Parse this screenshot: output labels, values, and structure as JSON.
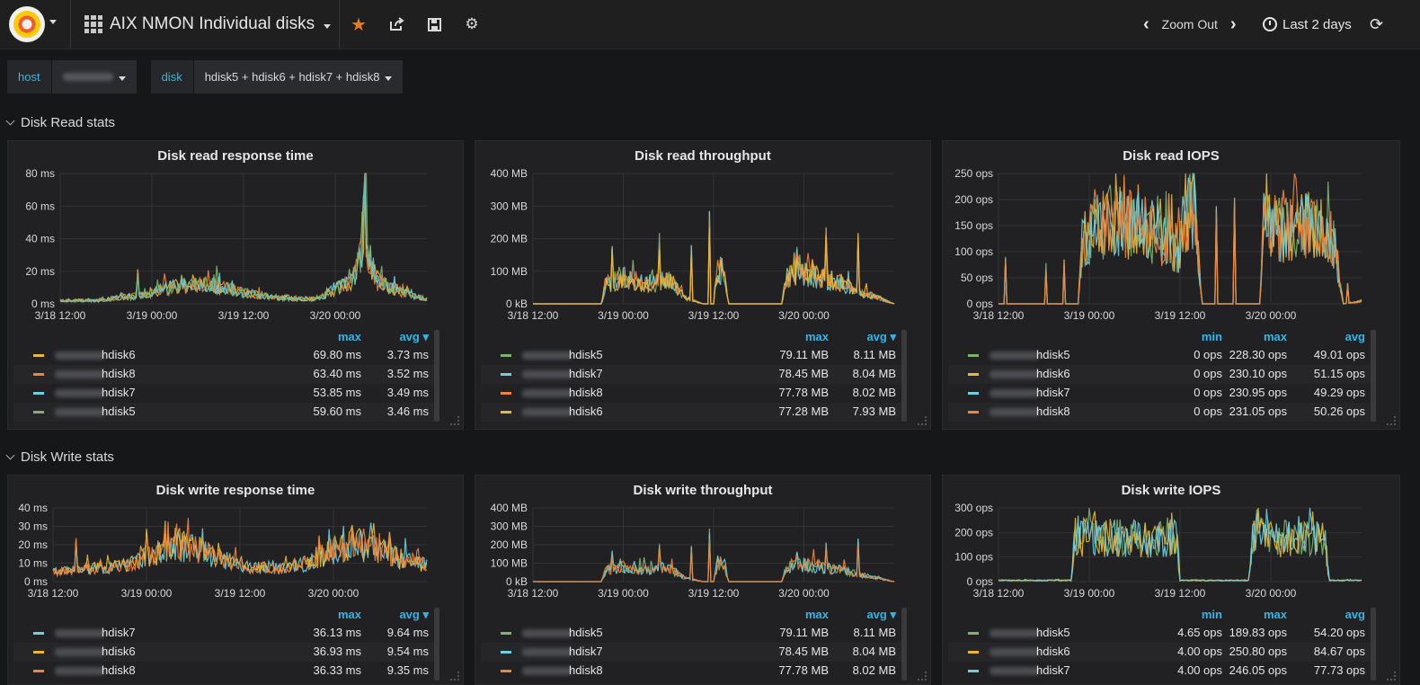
{
  "header": {
    "dashboard_title": "AIX NMON Individual disks",
    "zoom_out_label": "Zoom Out",
    "time_range_label": "Last 2 days"
  },
  "variables": [
    {
      "label": "host",
      "value": ""
    },
    {
      "label": "disk",
      "value": "hdisk5 + hdisk6 + hdisk7 + hdisk8"
    }
  ],
  "rows": [
    {
      "title": "Disk Read stats"
    },
    {
      "title": "Disk Write stats"
    }
  ],
  "colors": {
    "hdisk5": "#7eb26d",
    "hdisk6": "#eab839",
    "hdisk7": "#6ed0e0",
    "hdisk8": "#ef843c",
    "accent": "#33b5e5"
  },
  "panels": [
    {
      "title": "Disk read response time",
      "legend_headers": [
        "max",
        "avg"
      ],
      "legend": [
        {
          "name": "hdisk6",
          "color": "#eab839",
          "values": [
            "69.80 ms",
            "3.73 ms"
          ]
        },
        {
          "name": "hdisk8",
          "color": "#ef843c",
          "values": [
            "63.40 ms",
            "3.52 ms"
          ]
        },
        {
          "name": "hdisk7",
          "color": "#6ed0e0",
          "values": [
            "53.85 ms",
            "3.49 ms"
          ]
        },
        {
          "name": "hdisk5",
          "color": "#7eb26d",
          "values": [
            "59.60 ms",
            "3.46 ms"
          ]
        }
      ]
    },
    {
      "title": "Disk read throughput",
      "legend_headers": [
        "max",
        "avg"
      ],
      "legend": [
        {
          "name": "hdisk5",
          "color": "#7eb26d",
          "values": [
            "79.11 MB",
            "8.11 MB"
          ]
        },
        {
          "name": "hdisk7",
          "color": "#6ed0e0",
          "values": [
            "78.45 MB",
            "8.04 MB"
          ]
        },
        {
          "name": "hdisk8",
          "color": "#ef843c",
          "values": [
            "77.78 MB",
            "8.02 MB"
          ]
        },
        {
          "name": "hdisk6",
          "color": "#eab839",
          "values": [
            "77.28 MB",
            "7.93 MB"
          ]
        }
      ]
    },
    {
      "title": "Disk read IOPS",
      "legend_headers": [
        "min",
        "max",
        "avg"
      ],
      "legend": [
        {
          "name": "hdisk5",
          "color": "#7eb26d",
          "values": [
            "0 ops",
            "228.30 ops",
            "49.01 ops"
          ]
        },
        {
          "name": "hdisk6",
          "color": "#eab839",
          "values": [
            "0 ops",
            "230.10 ops",
            "51.15 ops"
          ]
        },
        {
          "name": "hdisk7",
          "color": "#6ed0e0",
          "values": [
            "0 ops",
            "230.95 ops",
            "49.29 ops"
          ]
        },
        {
          "name": "hdisk8",
          "color": "#ef843c",
          "values": [
            "0 ops",
            "231.05 ops",
            "50.26 ops"
          ]
        }
      ]
    },
    {
      "title": "Disk write response time",
      "legend_headers": [
        "max",
        "avg"
      ],
      "legend": [
        {
          "name": "hdisk7",
          "color": "#6ed0e0",
          "values": [
            "36.13 ms",
            "9.64 ms"
          ]
        },
        {
          "name": "hdisk6",
          "color": "#eab839",
          "values": [
            "36.93 ms",
            "9.54 ms"
          ]
        },
        {
          "name": "hdisk8",
          "color": "#ef843c",
          "values": [
            "36.33 ms",
            "9.35 ms"
          ]
        }
      ]
    },
    {
      "title": "Disk write throughput",
      "legend_headers": [
        "max",
        "avg"
      ],
      "legend": [
        {
          "name": "hdisk5",
          "color": "#7eb26d",
          "values": [
            "79.11 MB",
            "8.11 MB"
          ]
        },
        {
          "name": "hdisk7",
          "color": "#6ed0e0",
          "values": [
            "78.45 MB",
            "8.04 MB"
          ]
        },
        {
          "name": "hdisk8",
          "color": "#ef843c",
          "values": [
            "77.78 MB",
            "8.02 MB"
          ]
        }
      ]
    },
    {
      "title": "Disk write IOPS",
      "legend_headers": [
        "min",
        "max",
        "avg"
      ],
      "legend": [
        {
          "name": "hdisk5",
          "color": "#7eb26d",
          "values": [
            "4.65 ops",
            "189.83 ops",
            "54.20 ops"
          ]
        },
        {
          "name": "hdisk6",
          "color": "#eab839",
          "values": [
            "4.00 ops",
            "250.80 ops",
            "84.67 ops"
          ]
        },
        {
          "name": "hdisk7",
          "color": "#6ed0e0",
          "values": [
            "4.00 ops",
            "246.05 ops",
            "77.73 ops"
          ]
        }
      ]
    }
  ],
  "chart_data": [
    {
      "type": "line",
      "title": "Disk read response time",
      "x_ticks": [
        "3/18 12:00",
        "3/19 00:00",
        "3/19 12:00",
        "3/20 00:00"
      ],
      "y_ticks": [
        "0 ms",
        "20 ms",
        "40 ms",
        "60 ms",
        "80 ms"
      ],
      "ylim": [
        0,
        80
      ],
      "grid": true,
      "profile": [
        [
          0,
          2
        ],
        [
          0.1,
          2
        ],
        [
          0.17,
          4
        ],
        [
          0.22,
          5
        ],
        [
          0.3,
          10
        ],
        [
          0.4,
          12
        ],
        [
          0.5,
          7
        ],
        [
          0.58,
          4
        ],
        [
          0.64,
          3
        ],
        [
          0.7,
          3
        ],
        [
          0.76,
          10
        ],
        [
          0.8,
          14
        ],
        [
          0.82,
          28
        ],
        [
          0.83,
          69
        ],
        [
          0.84,
          30
        ],
        [
          0.86,
          15
        ],
        [
          0.9,
          10
        ],
        [
          0.95,
          6
        ],
        [
          1,
          3
        ]
      ],
      "spikes": [
        [
          0.21,
          22
        ],
        [
          0.29,
          14
        ],
        [
          0.33,
          18
        ],
        [
          0.8,
          24
        ],
        [
          0.83,
          69
        ]
      ],
      "series": [
        "hdisk6",
        "hdisk8",
        "hdisk7",
        "hdisk5"
      ]
    },
    {
      "type": "line",
      "title": "Disk read throughput",
      "x_ticks": [
        "3/18 12:00",
        "3/19 00:00",
        "3/19 12:00",
        "3/20 00:00"
      ],
      "y_ticks": [
        "0 kB",
        "100 MB",
        "200 MB",
        "300 MB",
        "400 MB"
      ],
      "ylim": [
        0,
        400
      ],
      "grid": true,
      "profile": [
        [
          0,
          0
        ],
        [
          0.19,
          0
        ],
        [
          0.2,
          60
        ],
        [
          0.26,
          80
        ],
        [
          0.32,
          60
        ],
        [
          0.38,
          70
        ],
        [
          0.42,
          20
        ],
        [
          0.47,
          0
        ],
        [
          0.5,
          0
        ],
        [
          0.51,
          100
        ],
        [
          0.53,
          100
        ],
        [
          0.54,
          0
        ],
        [
          0.69,
          0
        ],
        [
          0.7,
          80
        ],
        [
          0.74,
          90
        ],
        [
          0.8,
          80
        ],
        [
          0.86,
          60
        ],
        [
          0.9,
          40
        ],
        [
          1,
          0
        ]
      ],
      "spikes": [
        [
          0.22,
          200
        ],
        [
          0.35,
          220
        ],
        [
          0.44,
          210
        ],
        [
          0.49,
          310
        ],
        [
          0.73,
          180
        ],
        [
          0.81,
          240
        ],
        [
          0.9,
          245
        ]
      ],
      "series": [
        "hdisk5",
        "hdisk7",
        "hdisk8",
        "hdisk6"
      ]
    },
    {
      "type": "line",
      "title": "Disk read IOPS",
      "x_ticks": [
        "3/18 12:00",
        "3/19 00:00",
        "3/19 12:00",
        "3/20 00:00"
      ],
      "y_ticks": [
        "0 ops",
        "50 ops",
        "100 ops",
        "150 ops",
        "200 ops",
        "250 ops"
      ],
      "ylim": [
        0,
        250
      ],
      "grid": true,
      "profile": [
        [
          0,
          0
        ],
        [
          0.22,
          0
        ],
        [
          0.23,
          120
        ],
        [
          0.3,
          160
        ],
        [
          0.38,
          150
        ],
        [
          0.45,
          130
        ],
        [
          0.5,
          100
        ],
        [
          0.52,
          170
        ],
        [
          0.54,
          180
        ],
        [
          0.56,
          0
        ],
        [
          0.72,
          0
        ],
        [
          0.73,
          150
        ],
        [
          0.8,
          140
        ],
        [
          0.86,
          150
        ],
        [
          0.92,
          130
        ],
        [
          0.95,
          0
        ],
        [
          1,
          5
        ]
      ],
      "spikes": [
        [
          0.02,
          90
        ],
        [
          0.13,
          80
        ],
        [
          0.18,
          90
        ],
        [
          0.3,
          225
        ],
        [
          0.47,
          215
        ],
        [
          0.53,
          225
        ],
        [
          0.6,
          190
        ],
        [
          0.65,
          210
        ],
        [
          0.76,
          210
        ],
        [
          0.86,
          205
        ],
        [
          0.96,
          40
        ]
      ],
      "series": [
        "hdisk5",
        "hdisk6",
        "hdisk7",
        "hdisk8"
      ]
    },
    {
      "type": "line",
      "title": "Disk write response time",
      "x_ticks": [
        "3/18 12:00",
        "3/19 00:00",
        "3/19 12:00",
        "3/20 00:00"
      ],
      "y_ticks": [
        "0 ms",
        "10 ms",
        "20 ms",
        "30 ms",
        "40 ms"
      ],
      "ylim": [
        0,
        40
      ],
      "grid": true,
      "profile": [
        [
          0,
          5
        ],
        [
          0.1,
          7
        ],
        [
          0.2,
          9
        ],
        [
          0.26,
          14
        ],
        [
          0.32,
          20
        ],
        [
          0.38,
          18
        ],
        [
          0.45,
          12
        ],
        [
          0.52,
          8
        ],
        [
          0.6,
          7
        ],
        [
          0.68,
          10
        ],
        [
          0.74,
          16
        ],
        [
          0.8,
          20
        ],
        [
          0.86,
          18
        ],
        [
          0.92,
          13
        ],
        [
          1,
          9
        ]
      ],
      "spikes": [
        [
          0.06,
          24
        ],
        [
          0.25,
          30
        ],
        [
          0.3,
          35
        ],
        [
          0.4,
          30
        ],
        [
          0.71,
          25
        ],
        [
          0.8,
          34
        ],
        [
          0.9,
          35
        ]
      ],
      "series": [
        "hdisk7",
        "hdisk6",
        "hdisk8"
      ]
    },
    {
      "type": "line",
      "title": "Disk write throughput",
      "x_ticks": [
        "3/18 12:00",
        "3/19 00:00",
        "3/19 12:00",
        "3/20 00:00"
      ],
      "y_ticks": [
        "0 kB",
        "100 MB",
        "200 MB",
        "300 MB",
        "400 MB"
      ],
      "ylim": [
        0,
        400
      ],
      "grid": true,
      "profile": [
        [
          0,
          0
        ],
        [
          0.19,
          0
        ],
        [
          0.2,
          60
        ],
        [
          0.26,
          80
        ],
        [
          0.32,
          60
        ],
        [
          0.38,
          70
        ],
        [
          0.42,
          20
        ],
        [
          0.47,
          0
        ],
        [
          0.5,
          0
        ],
        [
          0.51,
          100
        ],
        [
          0.53,
          100
        ],
        [
          0.54,
          0
        ],
        [
          0.69,
          0
        ],
        [
          0.7,
          80
        ],
        [
          0.74,
          90
        ],
        [
          0.8,
          80
        ],
        [
          0.86,
          60
        ],
        [
          0.9,
          40
        ],
        [
          1,
          0
        ]
      ],
      "spikes": [
        [
          0.22,
          180
        ],
        [
          0.35,
          210
        ],
        [
          0.44,
          200
        ],
        [
          0.49,
          300
        ],
        [
          0.73,
          170
        ],
        [
          0.81,
          230
        ],
        [
          0.9,
          240
        ]
      ],
      "series": [
        "hdisk5",
        "hdisk7",
        "hdisk8"
      ]
    },
    {
      "type": "line",
      "title": "Disk write IOPS",
      "x_ticks": [
        "3/18 12:00",
        "3/19 00:00",
        "3/19 12:00",
        "3/20 00:00"
      ],
      "y_ticks": [
        "0 ops",
        "100 ops",
        "200 ops",
        "300 ops"
      ],
      "ylim": [
        0,
        300
      ],
      "grid": true,
      "profile": [
        [
          0,
          5
        ],
        [
          0.2,
          5
        ],
        [
          0.21,
          190
        ],
        [
          0.27,
          170
        ],
        [
          0.33,
          180
        ],
        [
          0.4,
          170
        ],
        [
          0.49,
          175
        ],
        [
          0.5,
          5
        ],
        [
          0.69,
          5
        ],
        [
          0.7,
          180
        ],
        [
          0.76,
          170
        ],
        [
          0.84,
          180
        ],
        [
          0.9,
          170
        ],
        [
          0.91,
          5
        ],
        [
          1,
          5
        ]
      ],
      "spikes": [
        [
          0.24,
          240
        ],
        [
          0.34,
          220
        ],
        [
          0.47,
          230
        ],
        [
          0.73,
          240
        ],
        [
          0.87,
          235
        ]
      ],
      "series": [
        "hdisk5",
        "hdisk6",
        "hdisk7"
      ]
    }
  ]
}
